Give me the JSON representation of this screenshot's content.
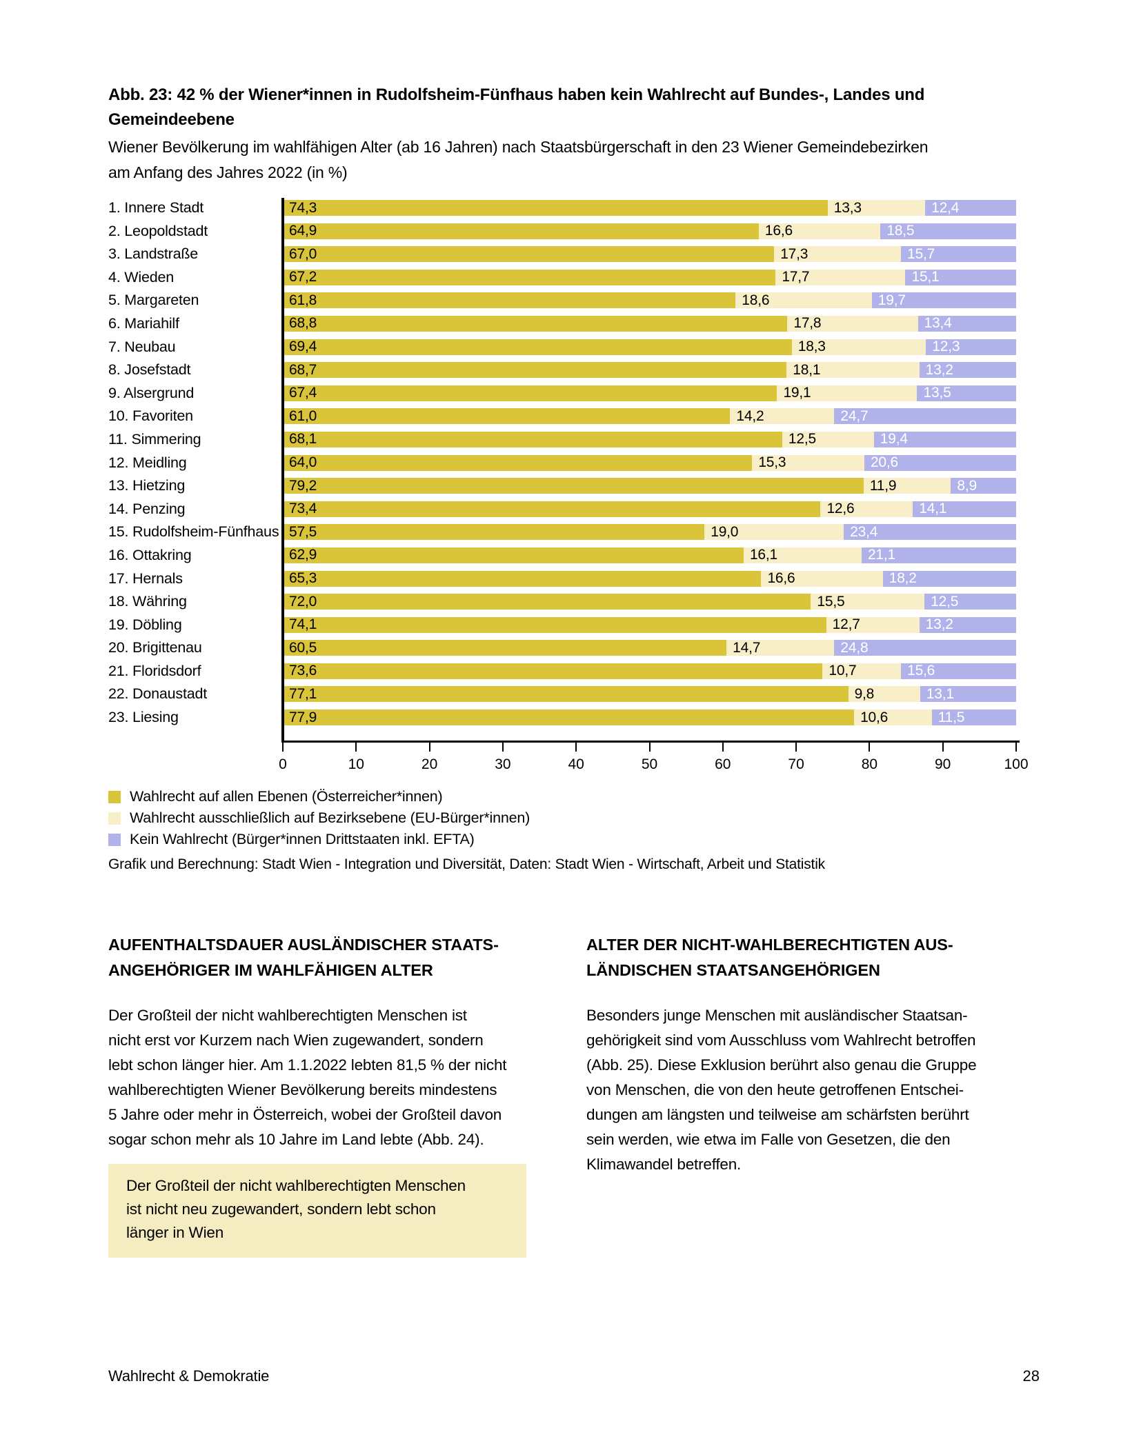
{
  "figure": {
    "title": "Abb. 23: 42 % der Wiener*innen in Rudolfsheim-Fünfhaus haben kein Wahlrecht auf Bundes-, Landes und\nGemeindeebene",
    "subtitle": "Wiener Bevölkerung im wahlfähigen Alter (ab 16 Jahren) nach Staatsbürgerschaft in den 23 Wiener Gemeindebezirken\nam Anfang des Jahres 2022 (in %)",
    "source": "Grafik und Berechnung: Stadt Wien - Integration und Diversität, Daten: Stadt Wien - Wirtschaft, Arbeit und Statistik"
  },
  "chart_data": {
    "type": "bar",
    "orientation": "horizontal",
    "stacked": true,
    "grid": false,
    "xlim": [
      0,
      100
    ],
    "x_ticks": [
      0,
      10,
      20,
      30,
      40,
      50,
      60,
      70,
      80,
      90,
      100
    ],
    "legend_position": "bottom",
    "value_format": "de-comma-1-decimal",
    "categories": [
      "1. Innere Stadt",
      "2. Leopoldstadt",
      "3. Landstraße",
      "4. Wieden",
      "5. Margareten",
      "6. Mariahilf",
      "7. Neubau",
      "8. Josefstadt",
      "9. Alsergrund",
      "10. Favoriten",
      "11. Simmering",
      "12. Meidling",
      "13. Hietzing",
      "14. Penzing",
      "15. Rudolfsheim-Fünfhaus",
      "16. Ottakring",
      "17. Hernals",
      "18. Währing",
      "19. Döbling",
      "20. Brigittenau",
      "21. Floridsdorf",
      "22. Donaustadt",
      "23. Liesing"
    ],
    "series": [
      {
        "name": "Wahlrecht auf allen Ebenen (Österreicher*innen)",
        "color": "#d9c43a",
        "label_color": "#000000",
        "values": [
          74.3,
          64.9,
          67.0,
          67.2,
          61.8,
          68.8,
          69.4,
          68.7,
          67.4,
          61.0,
          68.1,
          64.0,
          79.2,
          73.4,
          57.5,
          62.9,
          65.3,
          72.0,
          74.1,
          60.5,
          73.6,
          77.1,
          77.9
        ]
      },
      {
        "name": "Wahlrecht ausschließlich auf Bezirksebene (EU-Bürger*innen)",
        "color": "#f8eec7",
        "label_color": "#000000",
        "values": [
          13.3,
          16.6,
          17.3,
          17.7,
          18.6,
          17.8,
          18.3,
          18.1,
          19.1,
          14.2,
          12.5,
          15.3,
          11.9,
          12.6,
          19.0,
          16.1,
          16.6,
          15.5,
          12.7,
          14.7,
          10.7,
          9.8,
          10.6
        ]
      },
      {
        "name": "Kein Wahlrecht (Bürger*innen Drittstaaten inkl. EFTA)",
        "color": "#b2b2ea",
        "label_color": "#ffffff",
        "values": [
          12.4,
          18.5,
          15.7,
          15.1,
          19.7,
          13.4,
          12.3,
          13.2,
          13.5,
          24.7,
          19.4,
          20.6,
          8.9,
          14.1,
          23.4,
          21.1,
          18.2,
          12.5,
          13.2,
          24.8,
          15.6,
          13.1,
          11.5
        ]
      }
    ]
  },
  "sections": [
    {
      "heading": "AUFENTHALTSDAUER AUSLÄNDISCHER STAATS-\nANGEHÖRIGER IM WAHLFÄHIGEN ALTER",
      "body": "Der Großteil der nicht wahlberechtigten Menschen ist\nnicht erst vor Kurzem nach Wien zugewandert, sondern\nlebt schon länger hier. Am 1.1.2022 lebten 81,5 % der nicht\nwahlberechtigten Wiener Bevölkerung bereits mindestens\n5 Jahre oder mehr in Österreich, wobei der Großteil davon\nsogar schon mehr als 10 Jahre im Land lebte (Abb. 24)."
    },
    {
      "heading": "ALTER DER NICHT-WAHLBERECHTIGTEN AUS-\nLÄNDISCHEN STAATSANGEHÖRIGEN",
      "body": "Besonders junge Menschen mit ausländischer Staatsan-\ngehörigkeit sind vom Ausschluss vom Wahlrecht betroffen\n(Abb. 25). Diese Exklusion berührt also genau die Gruppe\nvon Menschen, die von den heute getroffenen Entschei-\ndungen am längsten und teilweise am schärfsten berührt\nsein werden, wie etwa im Falle von Gesetzen, die den\nKlimawandel betreffen."
    }
  ],
  "callout": {
    "background": "#f6ecc2",
    "text": "Der Großteil der nicht wahlberechtigten Menschen\nist nicht neu zugewandert, sondern lebt schon\nlänger in Wien"
  },
  "page": {
    "footer_left": "Wahlrecht & Demokratie",
    "footer_page": "28"
  }
}
